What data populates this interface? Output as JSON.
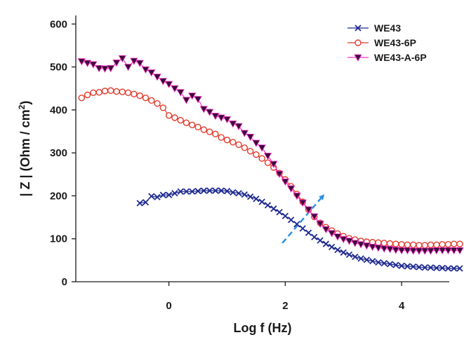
{
  "chart_data": {
    "type": "scatter",
    "xlabel": "Log f (Hz)",
    "ylabel": "| Z | (Ohm / cm²)",
    "xlim": [
      -1.6,
      5.0
    ],
    "ylim": [
      0,
      620
    ],
    "xticks": [
      0,
      2,
      4
    ],
    "yticks": [
      0,
      100,
      200,
      300,
      400,
      500,
      600
    ],
    "grid": false,
    "legend_position": "top-right",
    "series": [
      {
        "name": "WE43",
        "color": "#1f2a8f",
        "marker": "x",
        "x": [
          -0.5,
          -0.4,
          -0.3,
          -0.2,
          -0.1,
          0.0,
          0.1,
          0.2,
          0.3,
          0.4,
          0.5,
          0.6,
          0.7,
          0.8,
          0.9,
          1.0,
          1.1,
          1.2,
          1.3,
          1.4,
          1.5,
          1.6,
          1.7,
          1.8,
          1.9,
          2.0,
          2.1,
          2.2,
          2.3,
          2.4,
          2.5,
          2.6,
          2.7,
          2.8,
          2.9,
          3.0,
          3.1,
          3.2,
          3.3,
          3.4,
          3.5,
          3.6,
          3.7,
          3.8,
          3.9,
          4.0,
          4.1,
          4.2,
          4.3,
          4.4,
          4.5,
          4.6,
          4.7,
          4.8,
          4.9,
          5.0
        ],
        "y": [
          183,
          185,
          199,
          197,
          202,
          202,
          206,
          210,
          210,
          210,
          211,
          212,
          212,
          212,
          212,
          211,
          208,
          206,
          203,
          198,
          193,
          186,
          178,
          170,
          162,
          153,
          144,
          134,
          124,
          114,
          104,
          96,
          88,
          81,
          74,
          68,
          63,
          58,
          54,
          51,
          48,
          45,
          43,
          41,
          39,
          37,
          36,
          35,
          34,
          33,
          33,
          32,
          32,
          31,
          31,
          31
        ]
      },
      {
        "name": "WE43-6P",
        "color": "#e23a2c",
        "marker": "o",
        "x": [
          -1.5,
          -1.4,
          -1.3,
          -1.2,
          -1.1,
          -1.0,
          -0.9,
          -0.8,
          -0.7,
          -0.6,
          -0.5,
          -0.4,
          -0.3,
          -0.2,
          -0.1,
          0.0,
          0.1,
          0.2,
          0.3,
          0.4,
          0.5,
          0.6,
          0.7,
          0.8,
          0.9,
          1.0,
          1.1,
          1.2,
          1.3,
          1.4,
          1.5,
          1.6,
          1.7,
          1.8,
          1.9,
          2.0,
          2.1,
          2.2,
          2.3,
          2.4,
          2.5,
          2.6,
          2.7,
          2.8,
          2.9,
          3.0,
          3.1,
          3.2,
          3.3,
          3.4,
          3.5,
          3.6,
          3.7,
          3.8,
          3.9,
          4.0,
          4.1,
          4.2,
          4.3,
          4.4,
          4.5,
          4.6,
          4.7,
          4.8,
          4.9,
          5.0
        ],
        "y": [
          428,
          435,
          440,
          441,
          444,
          445,
          443,
          442,
          440,
          437,
          433,
          428,
          422,
          415,
          405,
          387,
          382,
          376,
          370,
          365,
          360,
          354,
          349,
          344,
          336,
          330,
          325,
          319,
          312,
          304,
          296,
          287,
          277,
          266,
          253,
          238,
          222,
          204,
          186,
          168,
          151,
          137,
          127,
          119,
          112,
          106,
          101,
          98,
          95,
          93,
          92,
          91,
          90,
          89,
          88,
          87,
          86,
          86,
          85,
          85,
          86,
          86,
          87,
          87,
          88,
          88
        ]
      },
      {
        "name": "WE43-A-6P",
        "color": "#ff2ec4",
        "marker": "triangle-down",
        "x": [
          -1.5,
          -1.4,
          -1.3,
          -1.2,
          -1.1,
          -1.0,
          -0.9,
          -0.8,
          -0.7,
          -0.6,
          -0.5,
          -0.4,
          -0.3,
          -0.2,
          -0.1,
          0.0,
          0.1,
          0.2,
          0.3,
          0.4,
          0.5,
          0.6,
          0.7,
          0.8,
          0.9,
          1.0,
          1.1,
          1.2,
          1.3,
          1.4,
          1.5,
          1.6,
          1.7,
          1.8,
          1.9,
          2.0,
          2.1,
          2.2,
          2.3,
          2.4,
          2.5,
          2.6,
          2.7,
          2.8,
          2.9,
          3.0,
          3.1,
          3.2,
          3.3,
          3.4,
          3.5,
          3.6,
          3.7,
          3.8,
          3.9,
          4.0,
          4.1,
          4.2,
          4.3,
          4.4,
          4.5,
          4.6,
          4.7,
          4.8,
          4.9,
          5.0
        ],
        "y": [
          513,
          509,
          506,
          497,
          496,
          497,
          510,
          520,
          500,
          514,
          509,
          494,
          487,
          477,
          467,
          460,
          450,
          441,
          423,
          433,
          425,
          402,
          395,
          386,
          382,
          378,
          368,
          362,
          346,
          337,
          323,
          312,
          293,
          274,
          251,
          233,
          217,
          200,
          184,
          168,
          152,
          135,
          122,
          113,
          105,
          99,
          95,
          90,
          87,
          84,
          81,
          79,
          77,
          76,
          74,
          73,
          73,
          72,
          72,
          72,
          72,
          73,
          73,
          73,
          73,
          73
        ]
      }
    ],
    "annotations": [
      {
        "type": "dashed-arrow",
        "color": "#2d8fe0",
        "from": [
          1.95,
          90
        ],
        "to": [
          2.65,
          200
        ]
      }
    ]
  }
}
